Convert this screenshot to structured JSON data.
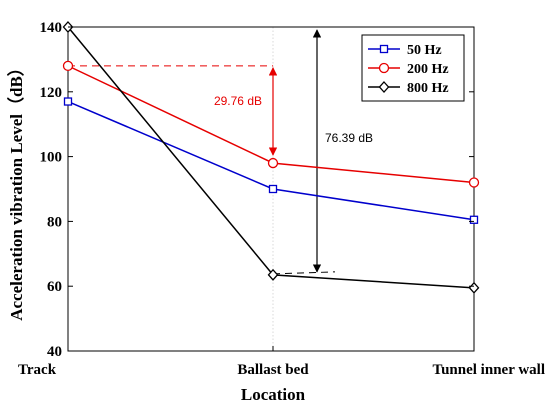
{
  "chart_data": {
    "type": "line",
    "categories": [
      "Track",
      "Ballast bed",
      "Tunnel inner wall"
    ],
    "ylabel": "Acceleration vibration Level（dB）",
    "xlabel": "Location",
    "ylim": [
      40,
      140
    ],
    "yticks": [
      40,
      60,
      80,
      100,
      120,
      140
    ],
    "grid": "x-only",
    "legend_position": "top-right",
    "series": [
      {
        "name": "50 Hz",
        "values": [
          117,
          90,
          80.5
        ],
        "color": "#0000cc",
        "marker": "square"
      },
      {
        "name": "200 Hz",
        "values": [
          128,
          98,
          92
        ],
        "color": "#e60000",
        "marker": "circle"
      },
      {
        "name": "800 Hz",
        "values": [
          140,
          63.5,
          59.5
        ],
        "color": "#000000",
        "marker": "diamond"
      }
    ],
    "annotations": [
      {
        "text": "29.76 dB",
        "color": "#e60000",
        "from": 128,
        "to": 98,
        "at": "Ballast bed"
      },
      {
        "text": "76.39 dB",
        "color": "#000000",
        "from": 140,
        "to": 63.5,
        "at": "Ballast bed"
      }
    ]
  }
}
